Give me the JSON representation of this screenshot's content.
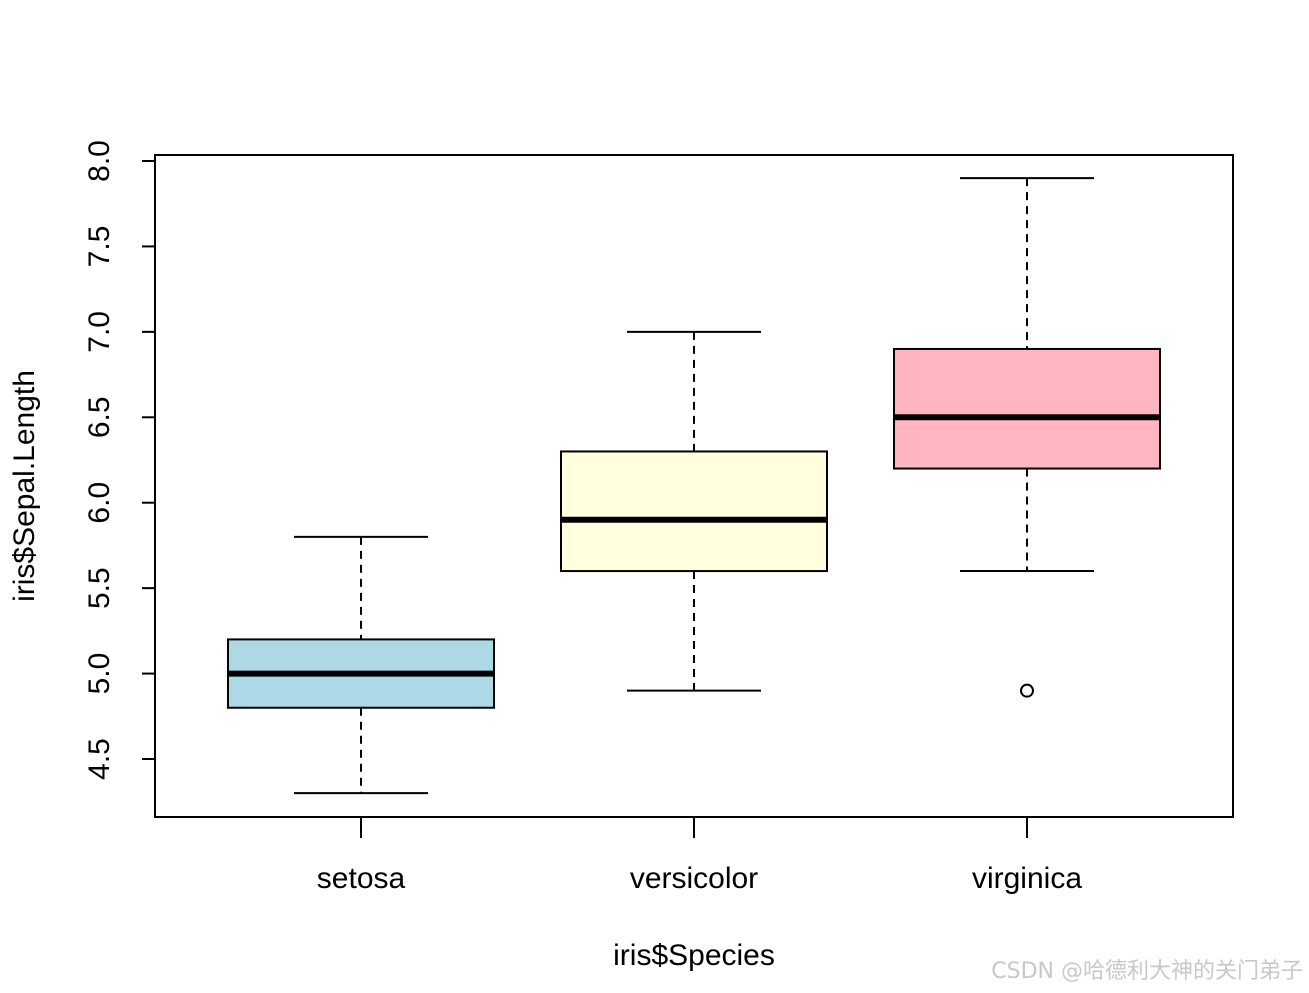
{
  "chart_data": {
    "type": "boxplot",
    "title": "",
    "xlabel": "iris$Species",
    "ylabel": "iris$Sepal.Length",
    "ylim": [
      4.3,
      8.0
    ],
    "yticks": [
      4.5,
      5.0,
      5.5,
      6.0,
      6.5,
      7.0,
      7.5,
      8.0
    ],
    "ytick_labels": [
      "4.5",
      "5.0",
      "5.5",
      "6.0",
      "6.5",
      "7.0",
      "7.5",
      "8.0"
    ],
    "categories": [
      "setosa",
      "versicolor",
      "virginica"
    ],
    "boxes": [
      {
        "category": "setosa",
        "min": 4.3,
        "q1": 4.8,
        "median": 5.0,
        "q3": 5.2,
        "max": 5.8,
        "outliers": [],
        "color": "#ADD8E6"
      },
      {
        "category": "versicolor",
        "min": 4.9,
        "q1": 5.6,
        "median": 5.9,
        "q3": 6.3,
        "max": 7.0,
        "outliers": [],
        "color": "#FFFFE0"
      },
      {
        "category": "virginica",
        "min": 5.6,
        "q1": 6.2,
        "median": 6.5,
        "q3": 6.9,
        "max": 7.9,
        "outliers": [
          4.9
        ],
        "color": "#FFB6C1"
      }
    ],
    "grid": false,
    "legend": "none"
  },
  "watermark": "CSDN @哈德利大神的关门弟子"
}
